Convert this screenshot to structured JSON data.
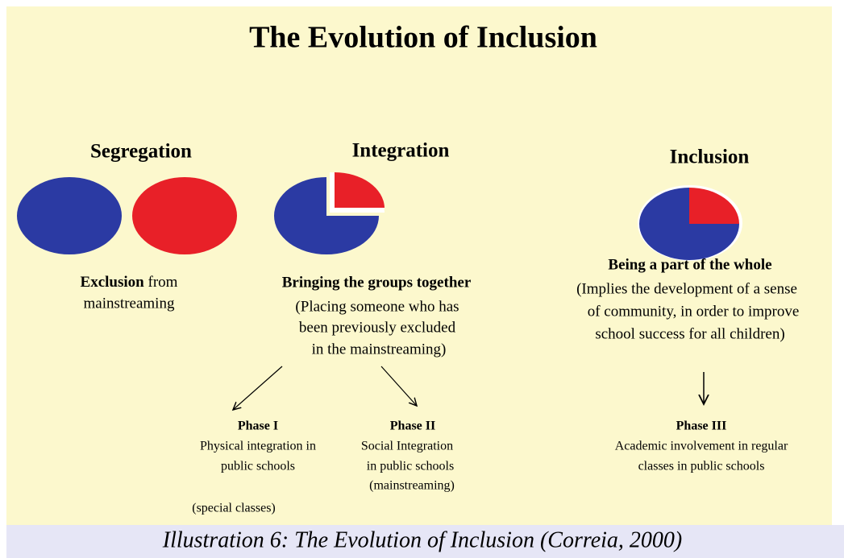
{
  "title": "The Evolution of Inclusion",
  "stages": [
    {
      "heading": "Segregation",
      "summary_bold": "Exclusion",
      "summary_rest": "from",
      "description": [
        "mainstreaming"
      ]
    },
    {
      "heading": "Integration",
      "summary_bold": "Bringing the groups together",
      "description": [
        "(Placing someone who has",
        "been previously excluded",
        "in the mainstreaming)"
      ]
    },
    {
      "heading": "Inclusion",
      "summary_bold": "Being a part of the whole",
      "description": [
        "(Implies the development of a sense",
        "of community, in order to improve",
        "school success for all children)"
      ]
    }
  ],
  "phases": [
    {
      "name": "Phase I",
      "lines": [
        "Physical integration in",
        "public schools"
      ],
      "note": "(special classes)"
    },
    {
      "name": "Phase II",
      "lines": [
        "Social Integration",
        "in public schools",
        "(mainstreaming)"
      ]
    },
    {
      "name": "Phase III",
      "lines": [
        "Academic involvement in regular",
        "classes in public schools"
      ]
    }
  ],
  "caption": "Illustration 6: The Evolution of Inclusion (Correia, 2000)"
}
